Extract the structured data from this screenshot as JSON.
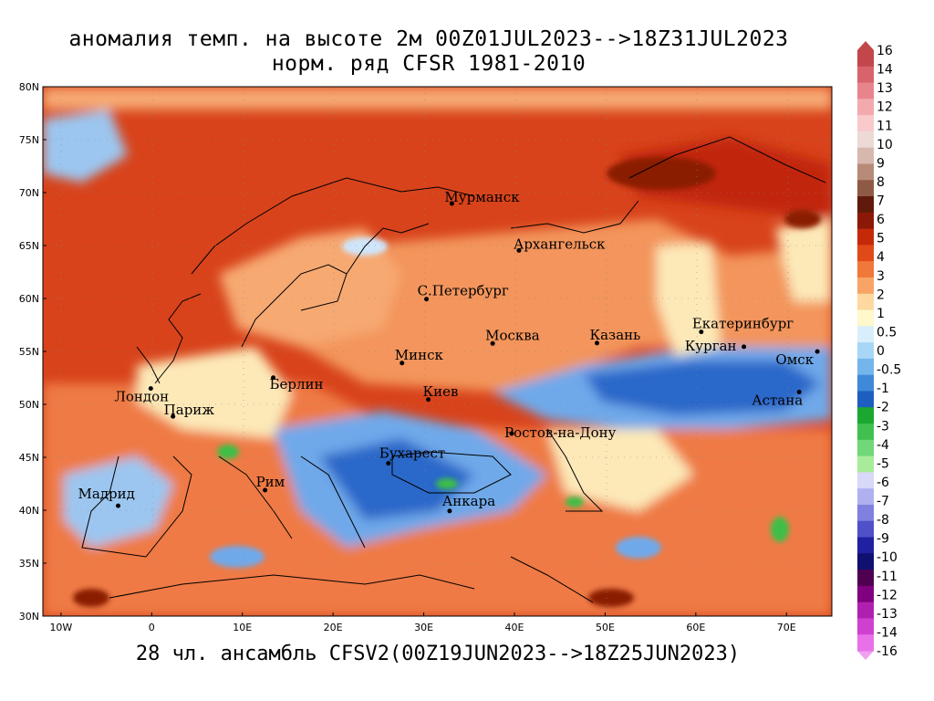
{
  "title_line1": "аномалия темп. на высоте 2м 00Z01JUL2023-->18Z31JUL2023",
  "title_line2": "норм. ряд CFSR 1981-2010",
  "footer": "28 чл. ансамбль CFSV2(00Z19JUN2023-->18Z25JUN2023)",
  "map": {
    "lon_range": [
      -12,
      75
    ],
    "lat_range": [
      30,
      80
    ],
    "lat_ticks": [
      "30N",
      "35N",
      "40N",
      "45N",
      "50N",
      "55N",
      "60N",
      "65N",
      "70N",
      "75N",
      "80N"
    ],
    "lon_ticks": [
      "10W",
      "0",
      "10E",
      "20E",
      "30E",
      "40E",
      "50E",
      "60E",
      "70E"
    ],
    "cities": [
      {
        "name": "Мурманск",
        "lon": 33.1,
        "lat": 68.97
      },
      {
        "name": "Архангельск",
        "lon": 40.5,
        "lat": 64.54
      },
      {
        "name": "С.Петербург",
        "lon": 30.3,
        "lat": 59.94
      },
      {
        "name": "Москва",
        "lon": 37.6,
        "lat": 55.75
      },
      {
        "name": "Казань",
        "lon": 49.1,
        "lat": 55.79
      },
      {
        "name": "Екатеринбург",
        "lon": 60.6,
        "lat": 56.84
      },
      {
        "name": "Курган",
        "lon": 65.3,
        "lat": 55.44
      },
      {
        "name": "Омск",
        "lon": 73.4,
        "lat": 54.99
      },
      {
        "name": "Астана",
        "lon": 71.4,
        "lat": 51.17
      },
      {
        "name": "Минск",
        "lon": 27.6,
        "lat": 53.9
      },
      {
        "name": "Киев",
        "lon": 30.5,
        "lat": 50.45
      },
      {
        "name": "Берлин",
        "lon": 13.4,
        "lat": 52.52
      },
      {
        "name": "Лондон",
        "lon": -0.1,
        "lat": 51.5
      },
      {
        "name": "Париж",
        "lon": 2.35,
        "lat": 48.86
      },
      {
        "name": "Ростов-на-Дону",
        "lon": 39.7,
        "lat": 47.24
      },
      {
        "name": "Бухарест",
        "lon": 26.1,
        "lat": 44.43
      },
      {
        "name": "Рим",
        "lon": 12.5,
        "lat": 41.9
      },
      {
        "name": "Мадрид",
        "lon": -3.7,
        "lat": 40.42
      },
      {
        "name": "Анкара",
        "lon": 32.85,
        "lat": 39.93
      }
    ]
  },
  "colorbar": {
    "labels": [
      "16",
      "14",
      "13",
      "12",
      "11",
      "10",
      "9",
      "8",
      "7",
      "6",
      "5",
      "4",
      "3",
      "2",
      "1",
      "0.5",
      "0",
      "-0.5",
      "-1",
      "-2",
      "-3",
      "-4",
      "-5",
      "-6",
      "-7",
      "-8",
      "-9",
      "-10",
      "-11",
      "-12",
      "-13",
      "-14",
      "-16"
    ],
    "colors": [
      "#c2464a",
      "#d8636c",
      "#e8858c",
      "#f3aaae",
      "#f8cacc",
      "#eddad6",
      "#d8b8ae",
      "#b88b78",
      "#8f5a44",
      "#601a0c",
      "#8c1808",
      "#c42a08",
      "#e04a18",
      "#f07838",
      "#f8a466",
      "#fdd8a0",
      "#fff8cc",
      "#d8eefc",
      "#a8d6f6",
      "#74b6ec",
      "#3f8ad8",
      "#1d5fc0",
      "#1aa830",
      "#40c050",
      "#70d878",
      "#a8ec9a",
      "#d8d8f8",
      "#b0b0f0",
      "#8080e0",
      "#5050c8",
      "#2020a0",
      "#101070",
      "#500050",
      "#800080",
      "#b020b0",
      "#d040d0",
      "#e870e8"
    ],
    "cap_top_color": "#c2464a",
    "cap_bottom_color": "#f0a0f0"
  },
  "colors": {
    "hot_dark": "#c1280a",
    "hot": "#d8431b",
    "warm": "#ef7a45",
    "warm_light": "#f7a972",
    "neutral": "#fde9b8",
    "cool_light": "#cfe6fb",
    "cool": "#6fa9ea",
    "cool_dark": "#2c68c9",
    "green": "#3cbf46",
    "very_hot": "#8a1a06"
  }
}
